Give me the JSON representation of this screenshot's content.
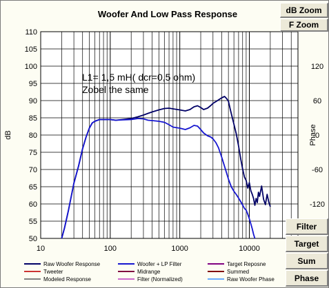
{
  "buttons": {
    "db_zoom": "dB Zoom",
    "f_zoom": "F Zoom",
    "filter": "Filter",
    "target": "Target",
    "sum": "Sum",
    "phase": "Phase"
  },
  "colors": {
    "raw_woofer": "#000066",
    "woofer_lp": "#1515d0",
    "target": "#800080",
    "tweeter": "#cc3333",
    "midrange": "#800040",
    "summed": "#800000",
    "modeled": "#808080",
    "filter_normalized": "#cc66cc",
    "raw_woofer_phase": "#66aaff"
  },
  "chart_data": {
    "type": "line",
    "title": "Woofer  And Low Pass Response",
    "ylabel": "dB",
    "y2label": "Phase",
    "xscale": "log",
    "xlim": [
      10,
      50000
    ],
    "ylim": [
      50,
      110
    ],
    "y2lim": [
      -180,
      180
    ],
    "grid": true,
    "x_ticks": [
      "10",
      "100",
      "1000",
      "10000"
    ],
    "y_ticks": [
      "50",
      "55",
      "60",
      "65",
      "70",
      "75",
      "80",
      "85",
      "90",
      "95",
      "100",
      "105",
      "110"
    ],
    "y2_ticks": [
      "-120",
      "-60",
      "0",
      "60",
      "120"
    ],
    "annotations": [
      "L1= 1,5 mH( dcr=0,5 ohm)",
      "Zobel the same"
    ],
    "legend": [
      {
        "label": "Raw Woofer Response",
        "color_key": "raw_woofer"
      },
      {
        "label": "Woofer + LP Filter",
        "color_key": "woofer_lp"
      },
      {
        "label": "Target Reposne",
        "color_key": "target"
      },
      {
        "label": "Tweeter",
        "color_key": "tweeter"
      },
      {
        "label": "Midrange",
        "color_key": "midrange"
      },
      {
        "label": "Summed",
        "color_key": "summed"
      },
      {
        "label": "Modeled Response",
        "color_key": "modeled"
      },
      {
        "label": "Filter (Normalized)",
        "color_key": "filter_normalized"
      },
      {
        "label": "Raw Woofer Phase",
        "color_key": "raw_woofer_phase"
      }
    ],
    "series": [
      {
        "name": "Raw Woofer Response",
        "x": [
          20,
          22,
          25,
          28,
          30,
          35,
          40,
          45,
          50,
          55,
          60,
          70,
          80,
          100,
          120,
          150,
          200,
          250,
          300,
          350,
          400,
          500,
          600,
          700,
          800,
          1000,
          1200,
          1400,
          1600,
          1800,
          2000,
          2200,
          2500,
          2800,
          3000,
          3300,
          3600,
          4000,
          4400,
          4700,
          5000,
          5300,
          5600,
          6000,
          6500,
          7000,
          7500,
          8000,
          8500,
          9000,
          9500,
          10000,
          10500,
          11000,
          11500,
          12000,
          12500,
          13000,
          13500,
          14000,
          15000,
          16000,
          17000,
          18000,
          19000,
          20000
        ],
        "y": [
          50,
          53,
          58,
          63,
          66,
          71,
          76,
          79.5,
          82,
          83.5,
          84,
          84.5,
          84.5,
          84.5,
          84.3,
          84.5,
          84.8,
          85.3,
          85.8,
          86.3,
          86.7,
          87.3,
          87.7,
          87.8,
          87.6,
          87.3,
          87.0,
          87.4,
          88.2,
          88.5,
          88.0,
          87.4,
          87.8,
          88.6,
          89.2,
          89.7,
          90.2,
          90.8,
          91.2,
          90.6,
          89.8,
          87.6,
          85.6,
          83.2,
          80.2,
          76.8,
          73.2,
          70.2,
          67.8,
          66.8,
          64.6,
          66.2,
          63.8,
          62.8,
          61.6,
          59.6,
          61.6,
          60.4,
          63.4,
          62.2,
          65.2,
          61.4,
          59.8,
          62.8,
          60.6,
          59.2
        ]
      },
      {
        "name": "Woofer + LP Filter",
        "x": [
          20,
          22,
          25,
          28,
          30,
          35,
          40,
          45,
          50,
          55,
          60,
          70,
          80,
          100,
          120,
          150,
          200,
          250,
          300,
          350,
          400,
          500,
          600,
          700,
          800,
          1000,
          1200,
          1400,
          1600,
          1800,
          2000,
          2200,
          2500,
          2800,
          3000,
          3300,
          3600,
          4000,
          4500,
          5000,
          5500,
          6000,
          6500,
          7000,
          7500,
          8000,
          8500,
          9000,
          9500,
          10000,
          10500,
          11000,
          11500,
          12000
        ],
        "y": [
          50,
          53,
          58,
          63,
          66,
          71,
          76,
          79.5,
          82,
          83.5,
          84,
          84.5,
          84.5,
          84.5,
          84.3,
          84.4,
          84.5,
          84.8,
          84.7,
          84.3,
          84.2,
          84.0,
          83.7,
          83.0,
          82.3,
          82.0,
          81.6,
          82.1,
          82.8,
          82.6,
          81.6,
          80.6,
          79.8,
          79.4,
          78.9,
          77.8,
          76.3,
          73.6,
          70.3,
          67.2,
          65.0,
          63.7,
          62.7,
          61.7,
          60.7,
          59.7,
          58.7,
          58.2,
          57.0,
          55.7,
          54.2,
          52.8,
          51.2,
          49.5
        ]
      }
    ]
  }
}
